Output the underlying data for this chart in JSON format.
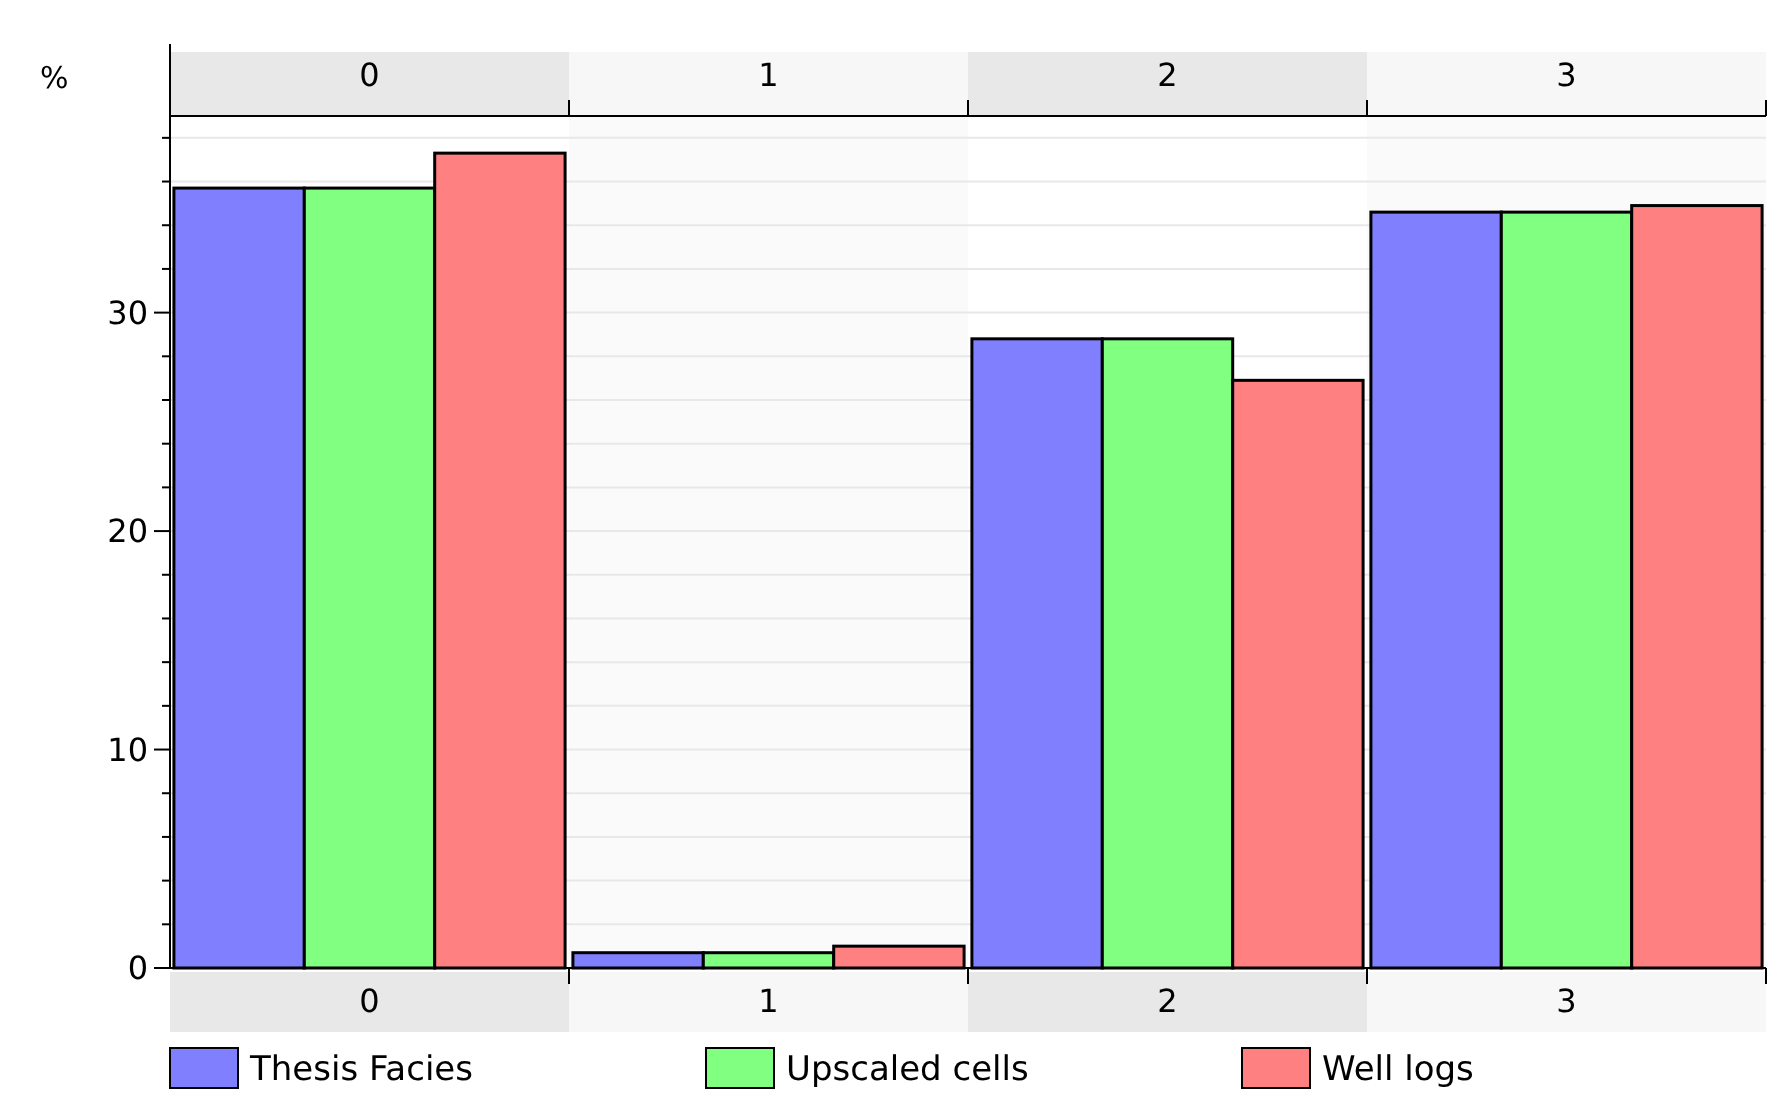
{
  "chart_data": {
    "type": "bar",
    "ylabel": "%",
    "categories": [
      "0",
      "1",
      "2",
      "3"
    ],
    "series": [
      {
        "name": "Thesis Facies",
        "color": "#8080ff",
        "values": [
          35.7,
          0.7,
          28.8,
          34.6
        ]
      },
      {
        "name": "Upscaled cells",
        "color": "#80ff80",
        "values": [
          35.7,
          0.7,
          28.8,
          34.6
        ]
      },
      {
        "name": "Well logs",
        "color": "#ff8080",
        "values": [
          37.3,
          1.0,
          26.9,
          34.9
        ]
      }
    ],
    "ylim": [
      0,
      39
    ],
    "yticks": [
      0,
      {
        "value": 2,
        "label": null
      },
      {
        "value": 4,
        "label": null
      },
      {
        "value": 6,
        "label": null
      },
      {
        "value": 8,
        "label": null
      },
      10,
      {
        "value": 12,
        "label": null
      },
      {
        "value": 14,
        "label": null
      },
      {
        "value": 16,
        "label": null
      },
      {
        "value": 18,
        "label": null
      },
      20,
      {
        "value": 22,
        "label": null
      },
      {
        "value": 24,
        "label": null
      },
      {
        "value": 26,
        "label": null
      },
      {
        "value": 28,
        "label": null
      },
      30,
      {
        "value": 32,
        "label": null
      },
      {
        "value": 34,
        "label": null
      },
      {
        "value": 36,
        "label": null
      },
      {
        "value": 38,
        "label": null
      }
    ],
    "grid": "y",
    "legend": "bottom"
  }
}
